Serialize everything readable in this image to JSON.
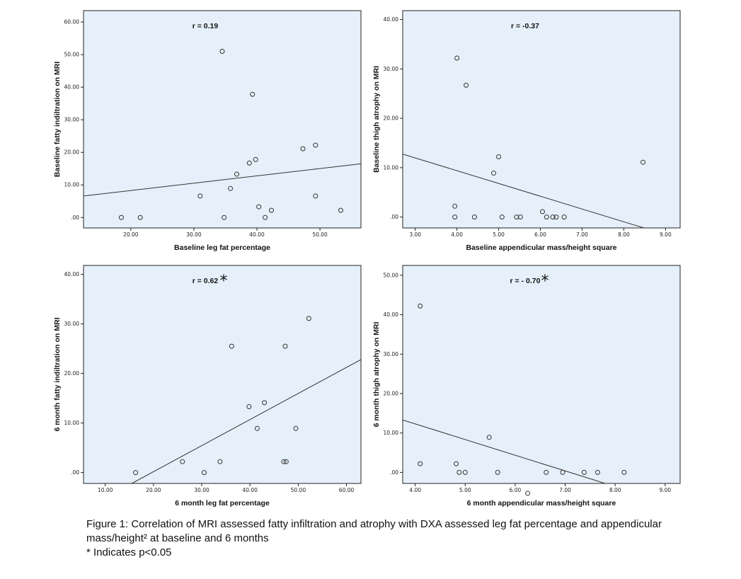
{
  "chart_data": [
    {
      "type": "scatter",
      "id": "baseline-leg-fat",
      "annotation": "r = 0.19",
      "significant": false,
      "xlabel": "Baseline leg fat percentage",
      "ylabel": "Baseline fatty indiltration on MRI",
      "xlim": [
        12.5,
        56.5
      ],
      "ylim": [
        -3.2,
        63.5
      ],
      "xticks": [
        20,
        30,
        40,
        50
      ],
      "yticks": [
        0,
        10,
        20,
        30,
        40,
        50,
        60
      ],
      "tick_labels_x": [
        "20.00",
        "30.00",
        "40.00",
        "50.00"
      ],
      "tick_labels_y": [
        ".00",
        "10.00",
        "20.00",
        "30.00",
        "40.00",
        "50.00",
        "60.00"
      ],
      "fit_line": {
        "x": [
          12.5,
          56.5
        ],
        "y": [
          6.6,
          16.5
        ]
      },
      "points": [
        {
          "x": 18.5,
          "y": 0
        },
        {
          "x": 21.5,
          "y": 0
        },
        {
          "x": 31,
          "y": 6.6
        },
        {
          "x": 34.5,
          "y": 51
        },
        {
          "x": 34.8,
          "y": 0
        },
        {
          "x": 35.8,
          "y": 8.9
        },
        {
          "x": 36.8,
          "y": 13.3
        },
        {
          "x": 38.8,
          "y": 16.7
        },
        {
          "x": 39.3,
          "y": 37.8
        },
        {
          "x": 39.8,
          "y": 17.8
        },
        {
          "x": 40.3,
          "y": 3.3
        },
        {
          "x": 41.3,
          "y": 0
        },
        {
          "x": 42.3,
          "y": 2.2
        },
        {
          "x": 47.3,
          "y": 21.1
        },
        {
          "x": 49.3,
          "y": 22.2
        },
        {
          "x": 49.3,
          "y": 6.6
        },
        {
          "x": 53.3,
          "y": 2.2
        }
      ]
    },
    {
      "type": "scatter",
      "id": "baseline-appendicular",
      "annotation": "r = -0.37",
      "significant": false,
      "xlabel": "Baseline appendicular mass/height square",
      "ylabel": "Baseline thigh atrophy on MRI",
      "xlim": [
        2.7,
        9.35
      ],
      "ylim": [
        -2.2,
        41.8
      ],
      "xticks": [
        3,
        4,
        5,
        6,
        7,
        8,
        9
      ],
      "yticks": [
        0,
        10,
        20,
        30,
        40
      ],
      "tick_labels_x": [
        "3.00",
        "4.00",
        "5.00",
        "6.00",
        "7.00",
        "8.00",
        "9.00"
      ],
      "tick_labels_y": [
        ".00",
        "10.00",
        "20.00",
        "30.00",
        "40.00"
      ],
      "fit_line": {
        "x": [
          2.7,
          8.48
        ],
        "y": [
          12.75,
          -2.2
        ]
      },
      "points": [
        {
          "x": 3.95,
          "y": 2.2
        },
        {
          "x": 3.95,
          "y": 0
        },
        {
          "x": 4.0,
          "y": 32.2
        },
        {
          "x": 4.22,
          "y": 26.7
        },
        {
          "x": 4.42,
          "y": 0
        },
        {
          "x": 4.88,
          "y": 8.9
        },
        {
          "x": 5.0,
          "y": 12.2
        },
        {
          "x": 5.08,
          "y": 0
        },
        {
          "x": 5.43,
          "y": 0
        },
        {
          "x": 5.52,
          "y": 0
        },
        {
          "x": 6.05,
          "y": 1.1
        },
        {
          "x": 6.15,
          "y": 0
        },
        {
          "x": 6.3,
          "y": 0
        },
        {
          "x": 6.38,
          "y": 0
        },
        {
          "x": 6.57,
          "y": 0
        },
        {
          "x": 8.46,
          "y": 11.1
        }
      ]
    },
    {
      "type": "scatter",
      "id": "sixmonth-leg-fat",
      "annotation": "r = 0.62",
      "significant": true,
      "significance_marker": "*",
      "xlabel": "6 month leg fat percentage",
      "ylabel": "6 month fatty indiltration on MRI",
      "xlim": [
        5.5,
        63
      ],
      "ylim": [
        -2.2,
        41.8
      ],
      "xticks": [
        10,
        20,
        30,
        40,
        50,
        60
      ],
      "yticks": [
        0,
        10,
        20,
        30,
        40
      ],
      "tick_labels_x": [
        "10.00",
        "20.00",
        "30.00",
        "40.00",
        "50.00",
        "60.00"
      ],
      "tick_labels_y": [
        ".00",
        "10.00",
        "20.00",
        "30.00",
        "40.00"
      ],
      "fit_line": {
        "x": [
          15.5,
          63
        ],
        "y": [
          -2.2,
          22.8
        ]
      },
      "points": [
        {
          "x": 16.3,
          "y": 0
        },
        {
          "x": 26,
          "y": 2.2
        },
        {
          "x": 30.5,
          "y": 0
        },
        {
          "x": 33.8,
          "y": 2.2
        },
        {
          "x": 36.2,
          "y": 25.5
        },
        {
          "x": 39.8,
          "y": 13.3
        },
        {
          "x": 41.5,
          "y": 8.9
        },
        {
          "x": 43,
          "y": 14.1
        },
        {
          "x": 47,
          "y": 2.2
        },
        {
          "x": 47.5,
          "y": 2.2
        },
        {
          "x": 47.3,
          "y": 25.5
        },
        {
          "x": 49.5,
          "y": 8.9
        },
        {
          "x": 52.2,
          "y": 31.1
        }
      ]
    },
    {
      "type": "scatter",
      "id": "sixmonth-appendicular",
      "annotation": "r = - 0.70",
      "significant": true,
      "significance_marker": "*",
      "xlabel": "6 month appendicular mass/height square",
      "ylabel": "6 month thigh atrophy on MRI",
      "xlim": [
        3.75,
        9.3
      ],
      "ylim": [
        -2.8,
        52.5
      ],
      "xticks": [
        4,
        5,
        6,
        7,
        8,
        9
      ],
      "yticks": [
        0,
        10,
        20,
        30,
        40,
        50
      ],
      "tick_labels_x": [
        "4.00",
        "5.00",
        "6.00",
        "7.00",
        "8.00",
        "9.00"
      ],
      "tick_labels_y": [
        ".00",
        "10.00",
        "20.00",
        "30.00",
        "40.00",
        "50.00"
      ],
      "fit_line": {
        "x": [
          3.75,
          7.8
        ],
        "y": [
          13.3,
          -2.8
        ]
      },
      "points": [
        {
          "x": 4.1,
          "y": 42.2
        },
        {
          "x": 4.1,
          "y": 2.2
        },
        {
          "x": 4.82,
          "y": 2.2
        },
        {
          "x": 4.88,
          "y": 0
        },
        {
          "x": 5.0,
          "y": 0
        },
        {
          "x": 5.48,
          "y": 8.9
        },
        {
          "x": 5.65,
          "y": 0
        },
        {
          "x": 6.25,
          "y": -5.3
        },
        {
          "x": 6.62,
          "y": 0
        },
        {
          "x": 6.95,
          "y": 0
        },
        {
          "x": 7.38,
          "y": 0
        },
        {
          "x": 7.65,
          "y": 0
        },
        {
          "x": 8.18,
          "y": 0
        }
      ]
    }
  ],
  "caption": {
    "line1": "Figure 1: Correlation of MRI assessed fatty infiltration and atrophy with DXA assessed leg fat percentage and appendicular",
    "line2": "mass/height² at baseline and 6 months",
    "line3": "* Indicates p<0.05"
  },
  "colors": {
    "plot_bg": "#e6f0fa",
    "axis": "#222222",
    "point_stroke": "#333333",
    "fit_line": "#333333"
  }
}
